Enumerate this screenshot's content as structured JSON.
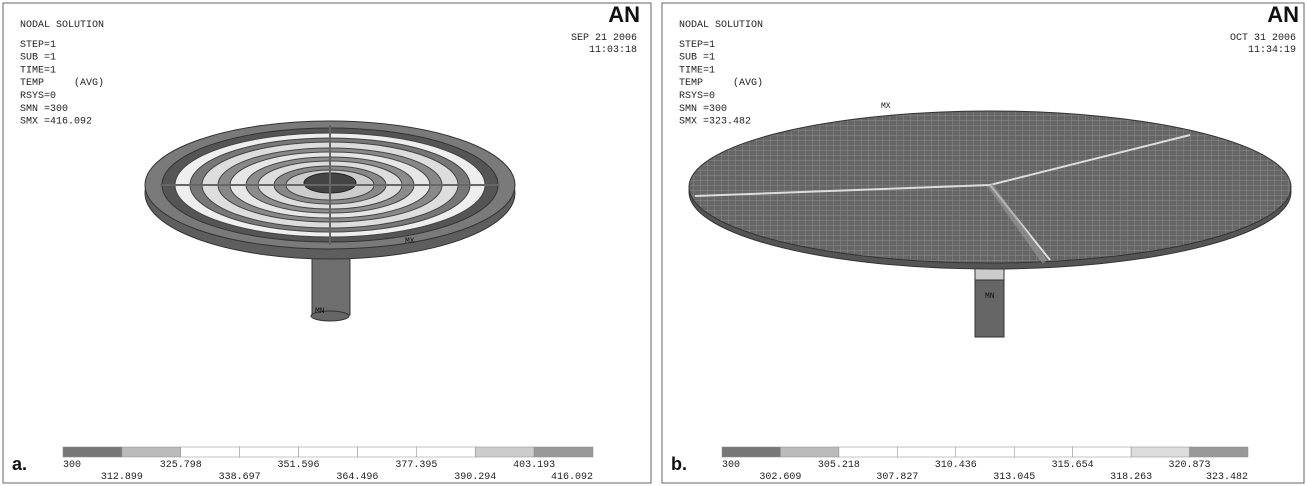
{
  "panels": [
    {
      "label": "a.",
      "logo": "AN",
      "header": [
        "NODAL SOLUTION",
        "STEP=1",
        "SUB =1",
        "TIME=1",
        "TEMP     (AVG)",
        "RSYS=0",
        "SMN =300",
        "SMX =416.092"
      ],
      "date": "SEP 21 2006",
      "time": "11:03:18",
      "markers": [
        "MX",
        "MN"
      ],
      "legend": [
        "300",
        "312.899",
        "325.798",
        "338.697",
        "351.596",
        "364.496",
        "377.395",
        "390.294",
        "403.193",
        "416.092"
      ]
    },
    {
      "label": "b.",
      "logo": "AN",
      "header": [
        "NODAL SOLUTION",
        "STEP=1",
        "SUB =1",
        "TIME=1",
        "TEMP     (AVG)",
        "RSYS=0",
        "SMN =300",
        "SMX =323.482"
      ],
      "date": "OCT 31 2006",
      "time": "11:34:19",
      "markers": [
        "MX",
        "MN"
      ],
      "legend": [
        "300",
        "302.609",
        "305.218",
        "307.827",
        "310.436",
        "313.045",
        "315.654",
        "318.263",
        "320.873",
        "323.482"
      ]
    }
  ]
}
